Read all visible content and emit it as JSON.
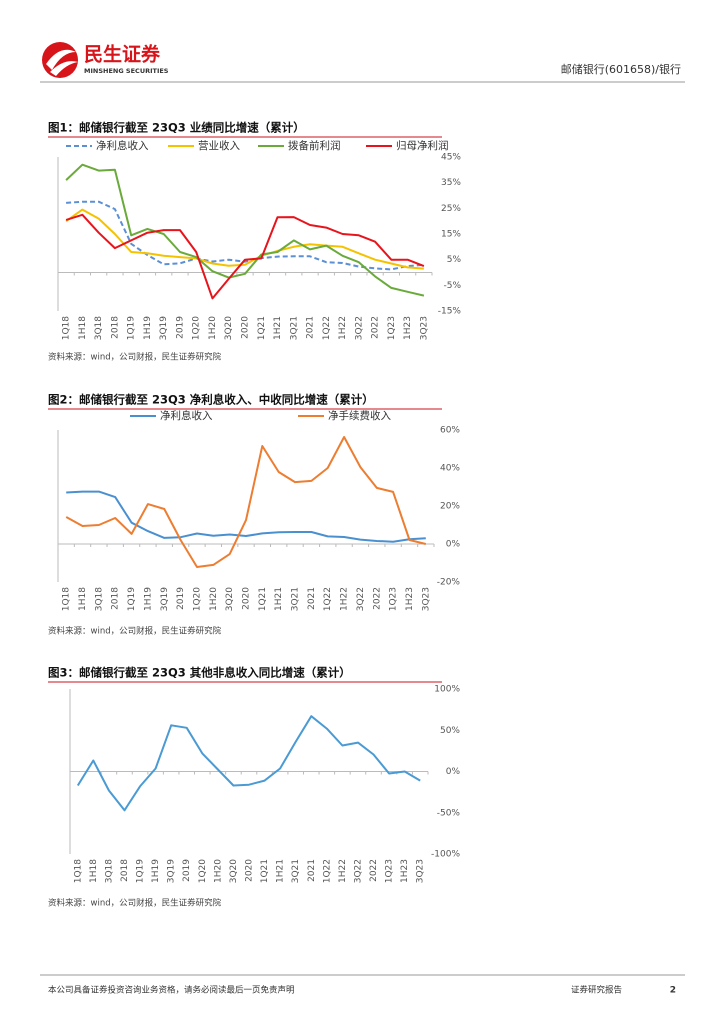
{
  "header": {
    "logo_text": "民生证券",
    "logo_subtext": "MINSHENG SECURITIES",
    "report_label": "邮储银行(601658)/银行"
  },
  "chart_data": [
    {
      "type": "line",
      "title": "图1：邮储银行截至 23Q3 业绩同比增速（累计）",
      "categories": [
        "1Q18",
        "1H18",
        "3Q18",
        "2018",
        "1Q19",
        "1H19",
        "3Q19",
        "2019",
        "1Q20",
        "1H20",
        "3Q20",
        "2020",
        "1Q21",
        "1H21",
        "3Q21",
        "2021",
        "1Q22",
        "1H22",
        "3Q22",
        "2022",
        "1Q23",
        "1H23",
        "3Q23"
      ],
      "series": [
        {
          "name": "净利息收入",
          "color": "#5b8fd6",
          "linestyle": "dashed",
          "values": [
            27.1,
            27.6,
            27.6,
            24.7,
            11.2,
            6.8,
            3.2,
            3.6,
            5.5,
            4.3,
            5.0,
            4.2,
            5.6,
            6.2,
            6.3,
            6.3,
            4.0,
            3.7,
            2.3,
            1.6,
            1.2,
            2.5,
            3.0
          ]
        },
        {
          "name": "营业收入",
          "color": "#f5c200",
          "linestyle": "solid",
          "values": [
            20.0,
            24.5,
            21.0,
            15.0,
            8.0,
            7.5,
            6.5,
            6.0,
            5.5,
            3.5,
            2.6,
            3.0,
            6.5,
            8.4,
            10.0,
            11.0,
            10.5,
            10.0,
            7.5,
            5.0,
            3.5,
            2.0,
            1.5
          ]
        },
        {
          "name": "拨备前利润",
          "color": "#6aaa3a",
          "linestyle": "solid",
          "values": [
            36.0,
            42.0,
            39.7,
            40.0,
            14.5,
            17.0,
            15.0,
            8.0,
            6.0,
            0.5,
            -2.0,
            -0.5,
            7.0,
            8.0,
            12.5,
            9.0,
            10.5,
            6.5,
            4.0,
            -1.5,
            -6.0,
            -7.5,
            -9.0
          ]
        },
        {
          "name": "归母净利润",
          "color": "#e8141c",
          "linestyle": "solid",
          "values": [
            20.5,
            22.5,
            15.5,
            9.5,
            12.5,
            15.5,
            16.5,
            16.5,
            8.0,
            -10.1,
            -2.5,
            5.0,
            5.5,
            21.5,
            21.6,
            18.5,
            17.5,
            15.0,
            14.5,
            12.0,
            5.0,
            5.0,
            2.5
          ]
        }
      ],
      "ylim": [
        -15,
        45
      ],
      "yticks": [
        {
          "value": 45,
          "label": "45%"
        },
        {
          "value": 35,
          "label": "35%"
        },
        {
          "value": 25,
          "label": "25%"
        },
        {
          "value": 15,
          "label": "15%"
        },
        {
          "value": 5,
          "label": "5%"
        },
        {
          "value": -5,
          "label": "-5%"
        },
        {
          "value": -15,
          "label": "-15%"
        }
      ],
      "grid": false,
      "source": "资料来源：wind，公司财报，民生证券研究院"
    },
    {
      "type": "line",
      "title": "图2：邮储银行截至 23Q3 净利息收入、中收同比增速（累计）",
      "categories": [
        "1Q18",
        "1H18",
        "3Q18",
        "2018",
        "1Q19",
        "1H19",
        "3Q19",
        "2019",
        "1Q20",
        "1H20",
        "3Q20",
        "2020",
        "1Q21",
        "1H21",
        "3Q21",
        "2021",
        "1Q22",
        "1H22",
        "3Q22",
        "2022",
        "1Q23",
        "1H23",
        "3Q23"
      ],
      "series": [
        {
          "name": "净利息收入",
          "color": "#4a90d0",
          "linestyle": "solid",
          "values": [
            27.1,
            27.6,
            27.6,
            24.7,
            11.2,
            6.8,
            3.2,
            3.6,
            5.5,
            4.3,
            5.0,
            4.2,
            5.6,
            6.2,
            6.3,
            6.3,
            4.0,
            3.7,
            2.3,
            1.6,
            1.2,
            2.5,
            3.0
          ]
        },
        {
          "name": "净手续费收入",
          "color": "#ed7d31",
          "linestyle": "solid",
          "values": [
            14.2,
            9.5,
            10.0,
            13.7,
            5.3,
            21.0,
            18.4,
            2.1,
            -12.1,
            -11.0,
            -5.3,
            12.6,
            51.6,
            37.9,
            32.6,
            33.2,
            40.0,
            56.3,
            40.5,
            29.5,
            27.4,
            2.1,
            0
          ]
        }
      ],
      "ylim": [
        -20,
        60
      ],
      "yticks": [
        {
          "value": 60,
          "label": "60%"
        },
        {
          "value": 40,
          "label": "40%"
        },
        {
          "value": 20,
          "label": "20%"
        },
        {
          "value": 0,
          "label": "0%"
        },
        {
          "value": -20,
          "label": "-20%"
        }
      ],
      "grid": false,
      "source": "资料来源：wind，公司财报，民生证券研究院"
    },
    {
      "type": "line",
      "title": "图3：邮储银行截至 23Q3 其他非息收入同比增速（累计）",
      "categories": [
        "1Q18",
        "1H18",
        "3Q18",
        "2018",
        "1Q19",
        "1H19",
        "3Q19",
        "2019",
        "1Q20",
        "1H20",
        "3Q20",
        "2020",
        "1Q21",
        "1H21",
        "3Q21",
        "2021",
        "1Q22",
        "1H22",
        "3Q22",
        "2022",
        "1Q23",
        "1H23",
        "3Q23"
      ],
      "values": [
        -17,
        13.3,
        -23,
        -47,
        -18,
        3.6,
        56,
        53,
        22,
        2.4,
        -17,
        -16,
        -11,
        3.6,
        36,
        67,
        52,
        31.5,
        35,
        20.6,
        -2.4,
        0,
        -11
      ],
      "color": "#4a9ad4",
      "ylim": [
        -100,
        100
      ],
      "yticks": [
        {
          "value": 100,
          "label": "100%"
        },
        {
          "value": 50,
          "label": "50%"
        },
        {
          "value": 0,
          "label": "0%"
        },
        {
          "value": -50,
          "label": "-50%"
        },
        {
          "value": -100,
          "label": "-100%"
        }
      ],
      "grid": false,
      "source": "资料来源：wind，公司财报，民生证券研究院"
    }
  ],
  "footer": {
    "disclaimer": "本公司具备证券投资咨询业务资格，请务必阅读最后一页免责声明",
    "report_type": "证券研究报告",
    "page_number": 2
  }
}
